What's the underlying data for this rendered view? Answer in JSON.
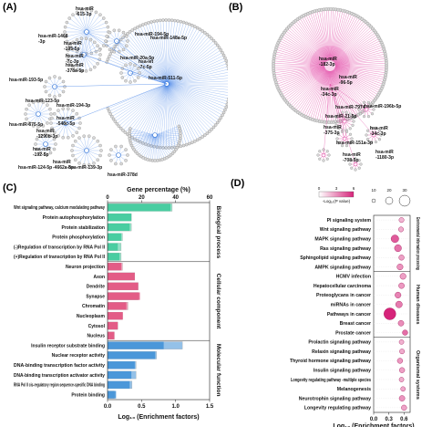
{
  "panels": {
    "A": {
      "label": "(A)"
    },
    "B": {
      "label": "(B)"
    },
    "C": {
      "label": "(C)"
    },
    "D": {
      "label": "(D)"
    }
  },
  "network_a": {
    "labels": [
      "hsa-miR\n-615-3p",
      "hsa-miR-1468\n-3p",
      "hsa-miR\n-195-5p",
      "hsa-miR-194-5p",
      "hsa-miR-148a-5p",
      "hsa-miR\n-7c-3p",
      "hsa-miR\n-378a-5p",
      "hsa-miR-20a-5p",
      "hsa-let\n-7c-5p",
      "hsa-miR-511-5p",
      "hsa-miR-193-5p",
      "hsa-miR-123-5p",
      "hsa-miR-194-3p",
      "hsa-miR\n-548c-5p",
      "hsa-miR-675-5p",
      "hsa-miR\n-1290b-3p",
      "hsa-miR\n-192-5p",
      "hsa-miR\n-4662a-5p",
      "hsa-miR-124-5p",
      "hsa-miR-139-3p",
      "hsa-miR-378d"
    ]
  },
  "network_b": {
    "labels": [
      "hsa-miR\n-182-3p",
      "hsa-miR\n-96-5p",
      "hsa-miR\n-34c-3p",
      "hsa-miR-7974",
      "hsa-miR-196b-5p",
      "hsa-miR\n-34c-3p",
      "hsa-miR-21-5p",
      "hsa-miR\n-375-3p",
      "hsa-miR-151a-3p",
      "hsa-miR\n-708-5p",
      "hsa-miR\n-1180-3p"
    ]
  },
  "chart_data": [
    {
      "type": "bar",
      "top_axis_title": "Gene percentage (%)",
      "top_ticks": [
        "0",
        "20",
        "40",
        "60"
      ],
      "xlabel": "Log₁₀ (Enrichment factors)",
      "xticks": [
        "0.0",
        "0.5",
        "1.0",
        "1.5"
      ],
      "xlim": [
        0,
        1.5
      ],
      "toplim": [
        0,
        60
      ],
      "categories": [
        "Wnt signaling pathway, calcium modulating pathway",
        "Protein autophosphorylation",
        "Protein stabilization",
        "Protein phosphorylation",
        "(-)Regulation of transcription by RNA Pol II",
        "(+)Regulation of transcription by RNA Pol II",
        "Neuron projection",
        "Axon",
        "Dendrite",
        "Synapse",
        "Chromatin",
        "Nucleoplasm",
        "Cytosol",
        "Nucleus",
        "Insulin receptor substrate binding",
        "Nuclear receptor activity",
        "DNA-binding transcription factor activity",
        "DNA-binding transcription activator activity",
        "RNA Pol II cis-regulatory region sequence-specific DNA binding",
        "Protein binding"
      ],
      "groups": [
        "Biological process",
        "Biological process",
        "Biological process",
        "Biological process",
        "Biological process",
        "Biological process",
        "Cellular component",
        "Cellular component",
        "Cellular component",
        "Cellular component",
        "Cellular component",
        "Cellular component",
        "Cellular component",
        "Cellular component",
        "Molecular function",
        "Molecular function",
        "Molecular function",
        "Molecular function",
        "Molecular function",
        "Molecular function"
      ],
      "enrichment": [
        0.95,
        0.35,
        0.35,
        0.22,
        0.2,
        0.2,
        0.22,
        0.4,
        0.45,
        0.45,
        0.3,
        0.22,
        0.15,
        0.1,
        1.1,
        0.72,
        0.42,
        0.42,
        0.36,
        0.1
      ],
      "gene_percentage": [
        37,
        14,
        13,
        8,
        6,
        7,
        8,
        16,
        18,
        19,
        11,
        9,
        6,
        4,
        33,
        28,
        16,
        14,
        13,
        5
      ],
      "group_labels": [
        "Biological process",
        "Cellular component",
        "Molecular function"
      ],
      "group_colors": {
        "Biological process": "#3cc99a",
        "Cellular component": "#e0507e",
        "Molecular function": "#3e8fd6"
      }
    },
    {
      "type": "scatter",
      "xlabel": "Log₁₀ (Enrichment factors)",
      "xticks": [
        "0.0",
        "0.3",
        "0.6"
      ],
      "xlim": [
        0,
        0.72
      ],
      "colorbar_label": "-Log₁₀(P value)",
      "colorbar_ticks": [
        "0",
        "3",
        "6"
      ],
      "size_legend": [
        "10",
        "20",
        "30"
      ],
      "categories": [
        "PI signaling system",
        "Wnt signaling pathway",
        "MAPK signaling pathway",
        "Ras signaling pathway",
        "Sphingolipid signaling pathway",
        "AMPK signaling pathway",
        "HCMV infection",
        "Hepatocellular carcinoma",
        "Proteoglycans in cancer",
        "miRNAs in cancer",
        "Pathways in cancer",
        "Breast cancer",
        "Prostate cancer",
        "Prolactin signaling pathway",
        "Relaxin signaling pathway",
        "Thyroid hormone signaling pathway",
        "Insulin signaling pathway",
        "Longevity regulating pathway -multiple species",
        "Melanogenesis",
        "Neurotrophin signaling pathway",
        "Longevity regulating pathway"
      ],
      "groups": [
        "Environmental information processing",
        "Environmental information processing",
        "Environmental information processing",
        "Environmental information processing",
        "Environmental information processing",
        "Environmental information processing",
        "Human diseases",
        "Human diseases",
        "Human diseases",
        "Human diseases",
        "Human diseases",
        "Human diseases",
        "Human diseases",
        "Organismal systems",
        "Organismal systems",
        "Organismal systems",
        "Organismal systems",
        "Organismal systems",
        "Organismal systems",
        "Organismal systems",
        "Organismal systems"
      ],
      "x": [
        0.55,
        0.54,
        0.42,
        0.48,
        0.55,
        0.52,
        0.58,
        0.55,
        0.48,
        0.5,
        0.32,
        0.54,
        0.62,
        0.55,
        0.56,
        0.52,
        0.56,
        0.55,
        0.58,
        0.56,
        0.6
      ],
      "count": [
        7,
        7,
        15,
        13,
        8,
        10,
        10,
        9,
        10,
        12,
        28,
        9,
        8,
        6,
        7,
        8,
        8,
        6,
        6,
        9,
        8
      ],
      "neg_log_p": [
        2.0,
        2.2,
        4.5,
        3.8,
        2.6,
        3.0,
        2.6,
        2.8,
        3.4,
        3.6,
        6.0,
        3.1,
        4.0,
        2.1,
        2.3,
        2.8,
        2.6,
        2.2,
        2.4,
        2.9,
        2.5
      ],
      "group_labels": [
        "Environmental information processing",
        "Human diseases",
        "Organismal systems"
      ]
    }
  ]
}
